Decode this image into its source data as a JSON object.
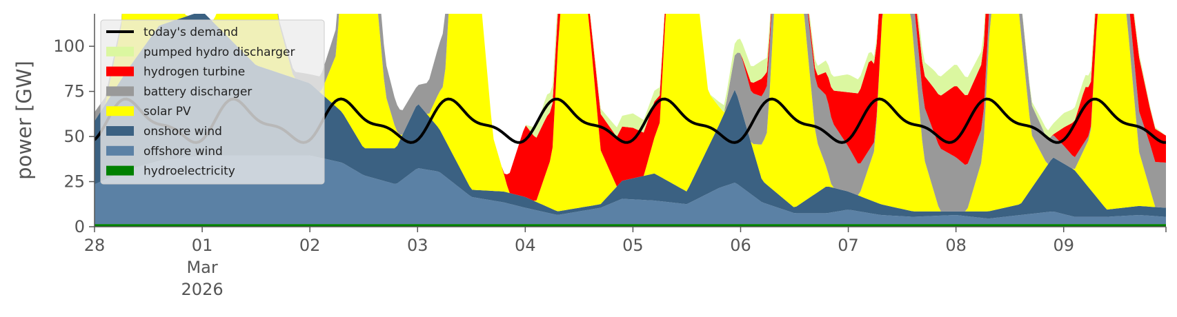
{
  "chart_data": {
    "type": "area",
    "title": "",
    "xlabel": "",
    "ylabel": "power [GW]",
    "ylim": [
      0,
      118
    ],
    "yticks": [
      0,
      25,
      50,
      75,
      100
    ],
    "x_ticks": [
      {
        "day": 0,
        "label": "28"
      },
      {
        "day": 1,
        "label": "01",
        "label2": "Mar",
        "label3": "2026"
      },
      {
        "day": 2,
        "label": "02"
      },
      {
        "day": 3,
        "label": "03"
      },
      {
        "day": 4,
        "label": "04"
      },
      {
        "day": 5,
        "label": "05"
      },
      {
        "day": 6,
        "label": "06"
      },
      {
        "day": 7,
        "label": "07"
      },
      {
        "day": 8,
        "label": "08"
      },
      {
        "day": 9,
        "label": "09"
      }
    ],
    "x_range_days": [
      0,
      9.95
    ],
    "legend_position": "top-left",
    "grid": false,
    "series": [
      {
        "name": "hydroelectricity",
        "color": "#008000",
        "x": [
          0,
          1,
          2,
          3,
          4,
          5,
          6,
          7,
          8,
          9,
          9.95
        ],
        "values": [
          1.5,
          1.5,
          1.5,
          1.5,
          1.5,
          1.5,
          1.5,
          1.5,
          1.5,
          1.5,
          1.5
        ]
      },
      {
        "name": "offshore wind",
        "color": "#5b81a5",
        "x": [
          0,
          0.3,
          0.6,
          1.0,
          1.5,
          2.0,
          2.3,
          2.5,
          2.8,
          3.0,
          3.2,
          3.5,
          3.8,
          4.0,
          4.3,
          4.7,
          4.9,
          5.2,
          5.5,
          5.8,
          5.95,
          6.2,
          6.5,
          6.8,
          7.0,
          7.3,
          7.6,
          8.0,
          8.3,
          8.6,
          8.9,
          9.1,
          9.4,
          9.7,
          9.95
        ],
        "values": [
          22,
          30,
          35,
          38,
          38,
          38,
          34,
          27,
          22,
          31,
          29,
          15,
          12,
          9,
          5,
          9,
          14,
          13,
          11,
          20,
          23,
          12,
          6,
          6,
          8,
          5,
          4,
          5,
          3,
          5,
          7,
          4,
          4,
          5,
          4
        ]
      },
      {
        "name": "onshore wind",
        "color": "#3b6182",
        "x": [
          0,
          0.3,
          0.6,
          1.0,
          1.5,
          2.0,
          2.3,
          2.5,
          2.8,
          3.0,
          3.2,
          3.5,
          3.8,
          4.0,
          4.3,
          4.7,
          4.9,
          5.2,
          5.5,
          5.8,
          5.95,
          6.2,
          6.5,
          6.8,
          7.0,
          7.3,
          7.6,
          8.0,
          8.3,
          8.6,
          8.9,
          9.1,
          9.4,
          9.7,
          9.95
        ],
        "values": [
          35,
          55,
          75,
          80,
          50,
          40,
          28,
          15,
          20,
          36,
          24,
          4,
          6,
          6,
          2,
          2,
          10,
          15,
          7,
          35,
          52,
          12,
          3,
          15,
          10,
          6,
          3,
          2,
          4,
          6,
          30,
          26,
          4,
          5,
          5
        ]
      },
      {
        "name": "solar PV",
        "color": "#ffff00",
        "x": [
          0,
          0.1,
          0.25,
          0.32,
          0.45,
          0.58,
          0.7,
          0.85,
          1.0,
          1.1,
          1.25,
          1.32,
          1.45,
          1.58,
          1.7,
          1.85,
          2.0,
          2.1,
          2.25,
          2.32,
          2.45,
          2.58,
          2.7,
          2.85,
          3.0,
          3.1,
          3.25,
          3.32,
          3.45,
          3.58,
          3.7,
          3.85,
          4.0,
          4.1,
          4.25,
          4.32,
          4.45,
          4.58,
          4.7,
          4.85,
          5.0,
          5.1,
          5.25,
          5.32,
          5.45,
          5.58,
          5.7,
          5.85,
          6.0,
          6.1,
          6.25,
          6.32,
          6.45,
          6.58,
          6.7,
          6.85,
          7.0,
          7.1,
          7.25,
          7.32,
          7.45,
          7.58,
          7.7,
          7.85,
          8.0,
          8.1,
          8.25,
          8.32,
          8.45,
          8.58,
          8.7,
          8.85,
          9.0,
          9.1,
          9.25,
          9.32,
          9.45,
          9.58,
          9.7,
          9.85,
          9.95
        ],
        "values": [
          0,
          0,
          30,
          110,
          130,
          110,
          30,
          0,
          0,
          0,
          30,
          110,
          130,
          110,
          30,
          0,
          0,
          0,
          30,
          110,
          130,
          110,
          30,
          0,
          0,
          0,
          30,
          110,
          130,
          110,
          30,
          0,
          0,
          0,
          30,
          110,
          130,
          110,
          30,
          0,
          0,
          0,
          30,
          110,
          130,
          110,
          30,
          0,
          0,
          0,
          30,
          110,
          130,
          110,
          30,
          0,
          0,
          0,
          30,
          110,
          130,
          110,
          30,
          0,
          0,
          0,
          30,
          110,
          130,
          110,
          30,
          0,
          0,
          0,
          30,
          110,
          130,
          110,
          30,
          0,
          0
        ]
      },
      {
        "name": "battery discharger",
        "color": "#999999",
        "x": [
          0,
          0.5,
          1.0,
          1.5,
          2.0,
          2.5,
          2.8,
          3.0,
          3.3,
          3.5,
          3.8,
          4.0,
          4.3,
          4.7,
          5.0,
          5.3,
          5.7,
          5.85,
          6.0,
          6.3,
          6.5,
          6.8,
          7.0,
          7.3,
          7.6,
          7.85,
          8.0,
          8.3,
          8.5,
          8.8,
          9.0,
          9.3,
          9.6,
          9.8,
          9.95
        ],
        "values": [
          5,
          0,
          0,
          0,
          5,
          25,
          15,
          10,
          35,
          0,
          0,
          0,
          0,
          0,
          0,
          0,
          0,
          0,
          30,
          25,
          10,
          40,
          25,
          0,
          25,
          35,
          30,
          15,
          20,
          15,
          10,
          0,
          20,
          25,
          25
        ]
      },
      {
        "name": "hydrogen turbine",
        "color": "#ff0000",
        "x": [
          0,
          2.5,
          3.2,
          3.5,
          3.8,
          4.0,
          4.2,
          4.5,
          4.7,
          4.9,
          5.0,
          5.2,
          5.4,
          5.7,
          6.0,
          6.2,
          6.4,
          6.7,
          7.0,
          7.2,
          7.5,
          7.8,
          8.0,
          8.3,
          8.6,
          8.9,
          9.0,
          9.2,
          9.5,
          9.7,
          9.8,
          9.95
        ],
        "values": [
          0,
          0,
          0,
          0,
          0,
          40,
          30,
          0,
          20,
          30,
          28,
          20,
          0,
          0,
          0,
          10,
          0,
          5,
          30,
          50,
          0,
          25,
          40,
          35,
          0,
          0,
          10,
          30,
          0,
          30,
          20,
          15
        ]
      },
      {
        "name": "pumped hydro discharger",
        "color": "#dbf7a0",
        "x": [
          0,
          3.0,
          4.0,
          4.2,
          4.5,
          4.9,
          5.0,
          5.2,
          5.4,
          5.7,
          6.0,
          6.2,
          6.4,
          7.0,
          7.2,
          7.4,
          7.8,
          8.0,
          8.3,
          8.6,
          9.0,
          9.3,
          9.95
        ],
        "values": [
          0,
          0,
          0,
          12,
          0,
          6,
          8,
          6,
          0,
          0,
          8,
          10,
          0,
          10,
          5,
          0,
          10,
          12,
          6,
          0,
          8,
          6,
          0
        ]
      }
    ],
    "demand": {
      "name": "today's demand",
      "color": "#000000"
    }
  }
}
